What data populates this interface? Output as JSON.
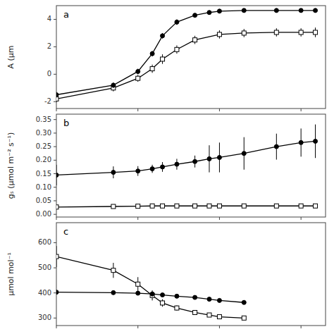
{
  "chart_data": [
    {
      "type": "line",
      "annotation": "a",
      "ylabel": "A (μm",
      "log": "x",
      "grid": false,
      "tick_labels": "y",
      "xlim": [
        1,
        2000
      ],
      "xticks": [
        1,
        10,
        100,
        1000
      ],
      "ylim": [
        -2.5,
        5.0
      ],
      "yticks": [
        -2,
        0,
        2,
        4
      ],
      "series": [
        {
          "color": "#000000",
          "marker": "circle",
          "line_style": "solid",
          "x": [
            1,
            5,
            10,
            15,
            20,
            30,
            50,
            75,
            100,
            200,
            500,
            1000,
            1500
          ],
          "values": [
            -1.5,
            -0.8,
            0.2,
            1.5,
            2.8,
            3.8,
            4.3,
            4.5,
            4.6,
            4.65,
            4.65,
            4.65,
            4.65
          ],
          "yerr": [
            0.2,
            0.2,
            0.2,
            0.2,
            0.2,
            0.2,
            0.15,
            0.15,
            0.15,
            0.15,
            0.15,
            0.15,
            0.15
          ]
        },
        {
          "color": "#000000",
          "marker": "open-square",
          "line_style": "solid",
          "x": [
            1,
            5,
            10,
            15,
            20,
            30,
            50,
            100,
            200,
            500,
            1000,
            1500
          ],
          "values": [
            -1.8,
            -1.0,
            -0.3,
            0.4,
            1.1,
            1.8,
            2.5,
            2.9,
            3.0,
            3.05,
            3.05,
            3.05
          ],
          "yerr": [
            0.25,
            0.25,
            0.25,
            0.3,
            0.35,
            0.3,
            0.3,
            0.3,
            0.3,
            0.3,
            0.3,
            0.35
          ]
        }
      ]
    },
    {
      "type": "line",
      "annotation": "b",
      "ylabel": "gₛ (μmol m⁻² s⁻¹)",
      "log": "x",
      "grid": false,
      "tick_labels": "y",
      "xlim": [
        1,
        2000
      ],
      "xticks": [
        1,
        10,
        100,
        1000
      ],
      "ylim": [
        -0.01,
        0.37
      ],
      "yticks": [
        {
          "value": 0,
          "label": "0.00"
        },
        0.05,
        {
          "value": 0.1,
          "label": "0.10"
        },
        0.15,
        {
          "value": 0.2,
          "label": "0.20"
        },
        0.25,
        {
          "value": 0.3,
          "label": "0.30"
        },
        0.35
      ],
      "series": [
        {
          "color": "#000000",
          "marker": "circle",
          "line_style": "solid",
          "x": [
            1,
            5,
            10,
            15,
            20,
            30,
            50,
            75,
            100,
            200,
            500,
            1000,
            1500
          ],
          "values": [
            0.145,
            0.155,
            0.16,
            0.168,
            0.175,
            0.185,
            0.195,
            0.205,
            0.21,
            0.225,
            0.25,
            0.265,
            0.27
          ],
          "yerr": [
            0.038,
            0.022,
            0.018,
            0.015,
            0.018,
            0.02,
            0.022,
            0.05,
            0.055,
            0.06,
            0.048,
            0.052,
            0.062
          ]
        },
        {
          "color": "#000000",
          "marker": "open-square",
          "line_style": "solid",
          "x": [
            1,
            5,
            10,
            15,
            20,
            30,
            50,
            75,
            100,
            200,
            500,
            1000,
            1500
          ],
          "values": [
            0.027,
            0.029,
            0.03,
            0.031,
            0.031,
            0.031,
            0.031,
            0.031,
            0.031,
            0.031,
            0.031,
            0.031,
            0.031
          ],
          "yerr": [
            0.003,
            0.002,
            0.002,
            0.002,
            0.001,
            0.001,
            0.001,
            0.001,
            0.001,
            0.001,
            0.001,
            0.001,
            0.001
          ]
        }
      ]
    },
    {
      "type": "line",
      "annotation": "c",
      "ylabel": "μmol mol⁻¹",
      "log": "x",
      "grid": false,
      "tick_labels": "y",
      "xlim": [
        1,
        2000
      ],
      "xticks": [
        1,
        10,
        100,
        1000
      ],
      "ylim": [
        270,
        680
      ],
      "yticks": [
        300,
        400,
        500,
        600
      ],
      "series": [
        {
          "color": "#000000",
          "marker": "circle",
          "line_style": "solid",
          "x": [
            1,
            5,
            10,
            15,
            20,
            30,
            50,
            75,
            100,
            200
          ],
          "values": [
            403,
            401,
            399,
            396,
            392,
            387,
            382,
            375,
            370,
            362
          ],
          "yerr": [
            4,
            4,
            4,
            4,
            4,
            4,
            4,
            4,
            4,
            4
          ]
        },
        {
          "color": "#000000",
          "marker": "open-square",
          "line_style": "solid",
          "x": [
            1,
            5,
            10,
            15,
            20,
            30,
            50,
            75,
            100,
            200
          ],
          "values": [
            545,
            490,
            435,
            390,
            360,
            340,
            322,
            312,
            305,
            300
          ],
          "yerr": [
            42,
            30,
            28,
            20,
            15,
            10,
            8,
            8,
            6,
            5
          ]
        }
      ]
    }
  ]
}
